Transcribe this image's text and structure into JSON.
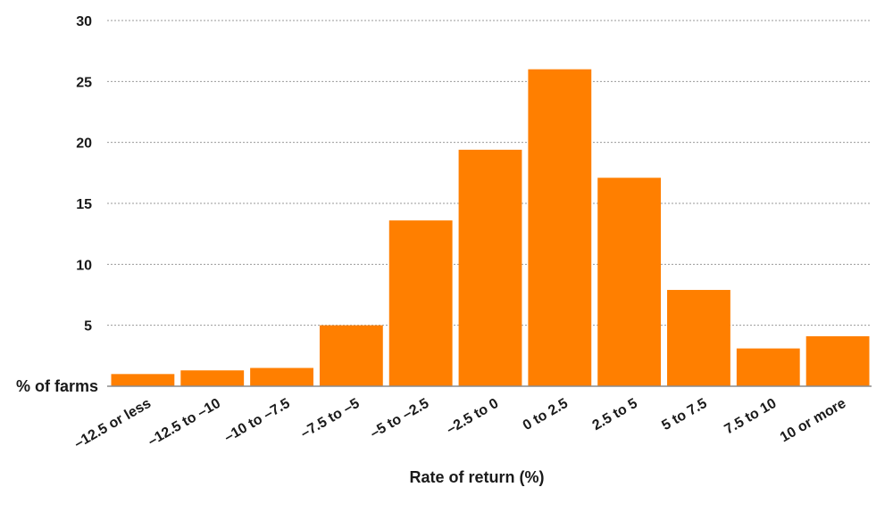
{
  "chart_data": {
    "type": "bar",
    "title": "",
    "xlabel": "Rate of return (%)",
    "ylabel": "% of farms",
    "ylim": [
      0,
      30
    ],
    "yticks": [
      5,
      10,
      15,
      20,
      25,
      30
    ],
    "grid": true,
    "categories": [
      "–12.5 or less",
      "–12.5 to –10",
      "–10 to –7.5",
      "–7.5 to –5",
      "–5 to –2.5",
      "–2.5 to 0",
      "0 to 2.5",
      "2.5 to 5",
      "5 to 7.5",
      "7.5 to 10",
      "10 or more"
    ],
    "values": [
      1.0,
      1.3,
      1.5,
      5.0,
      13.6,
      19.4,
      26.0,
      17.1,
      7.9,
      3.1,
      4.1
    ],
    "colors": {
      "bar": "#ff7f00",
      "grid": "#9a9a9a",
      "axis": "#8c8c8c",
      "text": "#1a1a1a"
    }
  }
}
